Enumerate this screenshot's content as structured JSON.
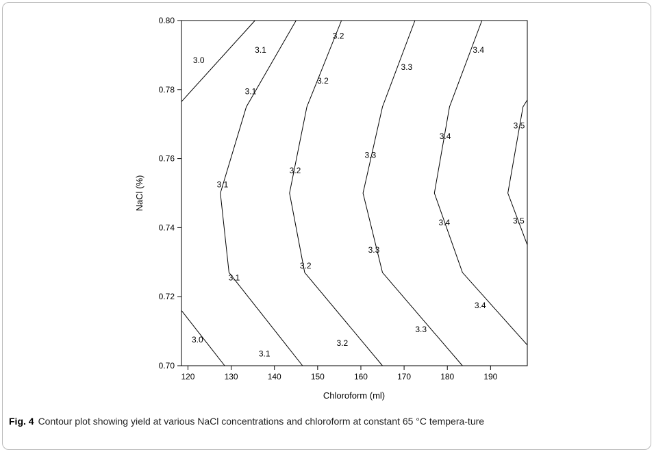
{
  "chart_data": {
    "type": "contour",
    "xlabel": "Chloroform (ml)",
    "ylabel": "NaCl (%)",
    "xlim": [
      118.5,
      198.5
    ],
    "ylim": [
      0.7,
      0.8
    ],
    "xticks": [
      120,
      130,
      140,
      150,
      160,
      170,
      180,
      190
    ],
    "yticks": [
      0.7,
      0.72,
      0.74,
      0.76,
      0.78,
      0.8
    ],
    "ytick_labels": [
      "0.70",
      "0.72",
      "0.74",
      "0.76",
      "0.78",
      "0.80"
    ],
    "grid": false,
    "contours": [
      {
        "level": "3.0",
        "points": [
          [
            118.5,
            0.7765
          ],
          [
            135.5,
            0.8
          ]
        ]
      },
      {
        "level": "3.0",
        "points": [
          [
            118.5,
            0.716
          ],
          [
            128.5,
            0.7
          ]
        ]
      },
      {
        "level": "3.1",
        "points": [
          [
            145,
            0.8
          ],
          [
            133.5,
            0.775
          ],
          [
            127.5,
            0.75
          ],
          [
            129.5,
            0.727
          ],
          [
            146.5,
            0.7
          ]
        ]
      },
      {
        "level": "3.2",
        "points": [
          [
            155.5,
            0.8
          ],
          [
            147.5,
            0.775
          ],
          [
            143.5,
            0.75
          ],
          [
            147,
            0.727
          ],
          [
            165,
            0.7
          ]
        ]
      },
      {
        "level": "3.3",
        "points": [
          [
            172.5,
            0.8
          ],
          [
            165,
            0.775
          ],
          [
            160.5,
            0.75
          ],
          [
            165,
            0.727
          ],
          [
            183.5,
            0.7
          ]
        ]
      },
      {
        "level": "3.4",
        "points": [
          [
            188,
            0.8
          ],
          [
            180.5,
            0.775
          ],
          [
            177,
            0.75
          ],
          [
            183.5,
            0.727
          ],
          [
            198.5,
            0.706
          ]
        ]
      },
      {
        "level": "3.5",
        "points": [
          [
            198.5,
            0.777
          ],
          [
            197.5,
            0.775
          ],
          [
            194,
            0.75
          ],
          [
            198.5,
            0.735
          ]
        ]
      }
    ],
    "labels": [
      {
        "text": "3.0",
        "x": 122.5,
        "y": 0.7885
      },
      {
        "text": "3.1",
        "x": 136.8,
        "y": 0.7915
      },
      {
        "text": "3.2",
        "x": 154.8,
        "y": 0.7955
      },
      {
        "text": "3.4",
        "x": 187.2,
        "y": 0.7915
      },
      {
        "text": "3.3",
        "x": 170.6,
        "y": 0.7865
      },
      {
        "text": "3.1",
        "x": 134.5,
        "y": 0.7795
      },
      {
        "text": "3.2",
        "x": 151.2,
        "y": 0.7825
      },
      {
        "text": "3.5",
        "x": 196.6,
        "y": 0.7695
      },
      {
        "text": "3.4",
        "x": 179.5,
        "y": 0.7665
      },
      {
        "text": "3.3",
        "x": 162.2,
        "y": 0.761
      },
      {
        "text": "3.2",
        "x": 144.8,
        "y": 0.7565
      },
      {
        "text": "3.1",
        "x": 128.0,
        "y": 0.7525
      },
      {
        "text": "3.4",
        "x": 179.3,
        "y": 0.7415
      },
      {
        "text": "3.5",
        "x": 196.5,
        "y": 0.742
      },
      {
        "text": "3.3",
        "x": 163.0,
        "y": 0.7335
      },
      {
        "text": "3.2",
        "x": 147.2,
        "y": 0.729
      },
      {
        "text": "3.1",
        "x": 130.7,
        "y": 0.7255
      },
      {
        "text": "3.4",
        "x": 187.6,
        "y": 0.7175
      },
      {
        "text": "3.3",
        "x": 173.9,
        "y": 0.7105
      },
      {
        "text": "3.2",
        "x": 155.7,
        "y": 0.7065
      },
      {
        "text": "3.0",
        "x": 122.2,
        "y": 0.7075
      },
      {
        "text": "3.1",
        "x": 137.7,
        "y": 0.7035
      }
    ]
  },
  "caption": {
    "figure_number": "Fig. 4",
    "text": "Contour plot showing yield at various NaCl concentrations and chloroform at constant 65 °C tempera-ture"
  }
}
